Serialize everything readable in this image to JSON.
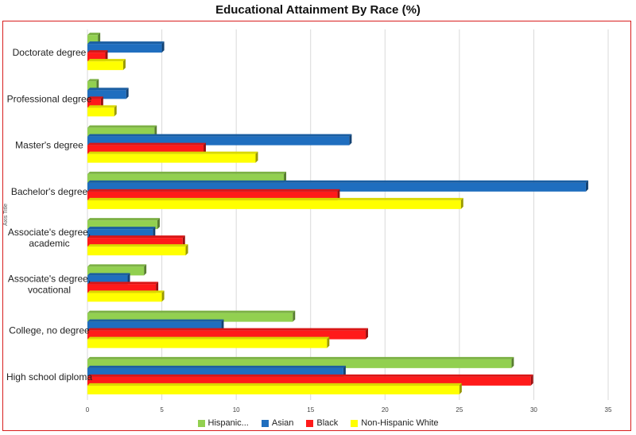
{
  "chart_data": {
    "type": "bar",
    "orientation": "horizontal",
    "style": "3d",
    "title": "Educational Attainment By Race (%)",
    "ylabel": "Axis Title",
    "xlabel": "",
    "xlim": [
      0,
      35
    ],
    "x_ticks": [
      "0",
      "5",
      "10",
      "15",
      "20",
      "25",
      "30",
      "35"
    ],
    "grid": true,
    "legend_position": "bottom",
    "categories": [
      "Doctorate degree",
      "Professional degree",
      "Master's degree",
      "Bachelor's degree",
      "Associate's degree, academic",
      "Associate's degree, vocational",
      "College, no degree",
      "High school diploma"
    ],
    "category_lines": [
      [
        "Doctorate degree"
      ],
      [
        "Professional degree"
      ],
      [
        "Master's degree"
      ],
      [
        "Bachelor's degree"
      ],
      [
        "Associate's degree,",
        "academic"
      ],
      [
        "Associate's degree,",
        "vocational"
      ],
      [
        "College, no degree"
      ],
      [
        "High school diploma"
      ]
    ],
    "series": [
      {
        "name": "Hispanic...",
        "color": "#92d050",
        "values": [
          0.7,
          0.6,
          4.5,
          13.2,
          4.7,
          3.8,
          13.8,
          28.5
        ]
      },
      {
        "name": "Asian",
        "color": "#1f6ebf",
        "values": [
          5.0,
          2.6,
          17.6,
          33.5,
          4.4,
          2.7,
          9.0,
          17.2
        ]
      },
      {
        "name": "Black",
        "color": "#ff1a1a",
        "values": [
          1.2,
          0.9,
          7.8,
          16.8,
          6.4,
          4.6,
          18.7,
          29.8
        ]
      },
      {
        "name": "Non-Hispanic White",
        "color": "#ffff00",
        "values": [
          2.4,
          1.8,
          11.3,
          25.1,
          6.6,
          5.0,
          16.1,
          25.0
        ]
      }
    ]
  }
}
